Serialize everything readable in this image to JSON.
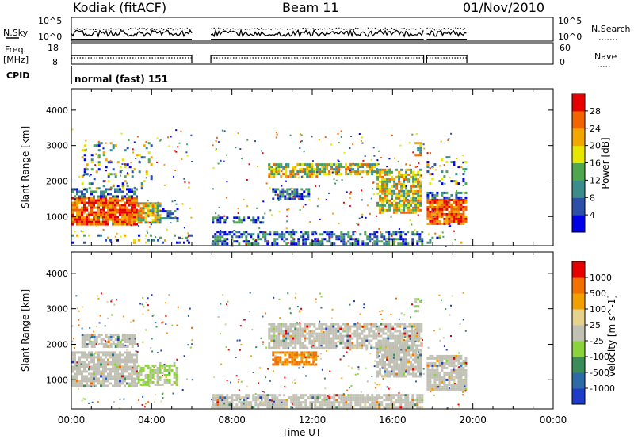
{
  "header": {
    "station": "Kodiak (fitACF)",
    "beam": "Beam 11",
    "date": "01/Nov/2010"
  },
  "status_panels": {
    "nsky_label": "N.Sky",
    "nsearch_label": "N.Search",
    "freq_label_line1": "Freq.",
    "freq_label_line2": "[MHz]",
    "nave_label": "Nave",
    "cpid_label": "CPID",
    "cpid_text": "normal (fast) 151",
    "noise_ticks": [
      "10^5",
      "10^0"
    ],
    "freq_ticks": [
      "18",
      "8"
    ],
    "nave_ticks": [
      "60",
      "0"
    ]
  },
  "chart_data": [
    {
      "type": "heatmap",
      "panel": "power",
      "xlabel": "Time UT",
      "ylabel": "Slant Range [km]",
      "x_ticks": [
        "00:00",
        "04:00",
        "08:00",
        "12:00",
        "16:00",
        "20:00",
        "00:00"
      ],
      "x_range_hours": [
        0,
        24
      ],
      "y_ticks": [
        1000,
        2000,
        3000,
        4000
      ],
      "y_range_km": [
        180,
        4600
      ],
      "colorbar_label": "Power [dB]",
      "colorbar_ticks": [
        "28",
        "24",
        "20",
        "16",
        "12",
        "8",
        "4"
      ],
      "colors": [
        "#0000e6",
        "#2e4fa8",
        "#3d8c8c",
        "#4fa64f",
        "#e6e600",
        "#f2a600",
        "#f26400",
        "#e60000"
      ],
      "data_gaps_hours": [
        [
          6.0,
          6.95
        ],
        [
          17.55,
          17.7
        ],
        [
          19.7,
          24.0
        ]
      ],
      "echo_regions": [
        {
          "t0": 0.0,
          "t1": 3.3,
          "r0": 800,
          "r1": 1550,
          "level": "strong"
        },
        {
          "t0": 3.3,
          "t1": 4.4,
          "r0": 850,
          "r1": 1400,
          "level": "medium"
        },
        {
          "t0": 4.4,
          "t1": 5.3,
          "r0": 900,
          "r1": 1250,
          "level": "weak"
        },
        {
          "t0": 0.0,
          "t1": 3.3,
          "r0": 1550,
          "r1": 1800,
          "level": "weak"
        },
        {
          "t0": 0.5,
          "t1": 4.0,
          "r0": 1800,
          "r1": 3100,
          "level": "sparse"
        },
        {
          "t0": 0.0,
          "t1": 6.0,
          "r0": 250,
          "r1": 500,
          "level": "sparse"
        },
        {
          "t0": 7.0,
          "t1": 17.5,
          "r0": 250,
          "r1": 600,
          "level": "weak"
        },
        {
          "t0": 7.0,
          "t1": 9.5,
          "r0": 850,
          "r1": 1000,
          "level": "weak"
        },
        {
          "t0": 9.8,
          "t1": 12.2,
          "r0": 2100,
          "r1": 2500,
          "level": "medium"
        },
        {
          "t0": 12.2,
          "t1": 15.2,
          "r0": 2200,
          "r1": 2500,
          "level": "medium"
        },
        {
          "t0": 15.2,
          "t1": 17.4,
          "r0": 1100,
          "r1": 2350,
          "level": "medium"
        },
        {
          "t0": 10.0,
          "t1": 11.8,
          "r0": 1500,
          "r1": 1800,
          "level": "weak"
        },
        {
          "t0": 17.1,
          "t1": 17.4,
          "r0": 2700,
          "r1": 3100,
          "level": "medium"
        },
        {
          "t0": 17.7,
          "t1": 19.7,
          "r0": 800,
          "r1": 1500,
          "level": "strong"
        },
        {
          "t0": 17.7,
          "t1": 19.7,
          "r0": 1500,
          "r1": 1700,
          "level": "weak"
        },
        {
          "t0": 17.7,
          "t1": 19.7,
          "r0": 1900,
          "r1": 2700,
          "level": "sparse"
        },
        {
          "t0": 17.7,
          "t1": 19.7,
          "r0": 250,
          "r1": 500,
          "level": "sparse"
        }
      ]
    },
    {
      "type": "heatmap",
      "panel": "velocity",
      "xlabel": "Time UT",
      "ylabel": "Slant Range [km]",
      "x_ticks": [
        "00:00",
        "04:00",
        "08:00",
        "12:00",
        "16:00",
        "20:00",
        "00:00"
      ],
      "x_range_hours": [
        0,
        24
      ],
      "y_ticks": [
        1000,
        2000,
        3000,
        4000
      ],
      "y_range_km": [
        180,
        4600
      ],
      "colorbar_label": "Velocity [m s^-1]",
      "colorbar_ticks": [
        "1000",
        "500",
        "100",
        "25",
        "-25",
        "-100",
        "-500",
        "-1000"
      ],
      "colors": [
        "#1e3cc8",
        "#2e6aa8",
        "#3c8c5a",
        "#8cd23c",
        "#c0c0b4",
        "#e6d28c",
        "#f2a000",
        "#f27000",
        "#e60000"
      ],
      "echo_regions": [
        {
          "t0": 0.0,
          "t1": 3.3,
          "r0": 800,
          "r1": 1800,
          "level": "ground"
        },
        {
          "t0": 3.3,
          "t1": 5.3,
          "r0": 850,
          "r1": 1500,
          "level": "green"
        },
        {
          "t0": 0.5,
          "t1": 3.2,
          "r0": 1900,
          "r1": 2300,
          "level": "ground"
        },
        {
          "t0": 7.0,
          "t1": 17.5,
          "r0": 250,
          "r1": 600,
          "level": "ground"
        },
        {
          "t0": 9.8,
          "t1": 17.4,
          "r0": 1900,
          "r1": 2600,
          "level": "ground"
        },
        {
          "t0": 10.0,
          "t1": 12.2,
          "r0": 1450,
          "r1": 1800,
          "level": "orange"
        },
        {
          "t0": 15.2,
          "t1": 17.4,
          "r0": 1100,
          "r1": 2000,
          "level": "ground"
        },
        {
          "t0": 17.7,
          "t1": 19.7,
          "r0": 750,
          "r1": 1700,
          "level": "ground"
        },
        {
          "t0": 17.1,
          "t1": 17.4,
          "r0": 2900,
          "r1": 3300,
          "level": "green"
        }
      ]
    }
  ]
}
